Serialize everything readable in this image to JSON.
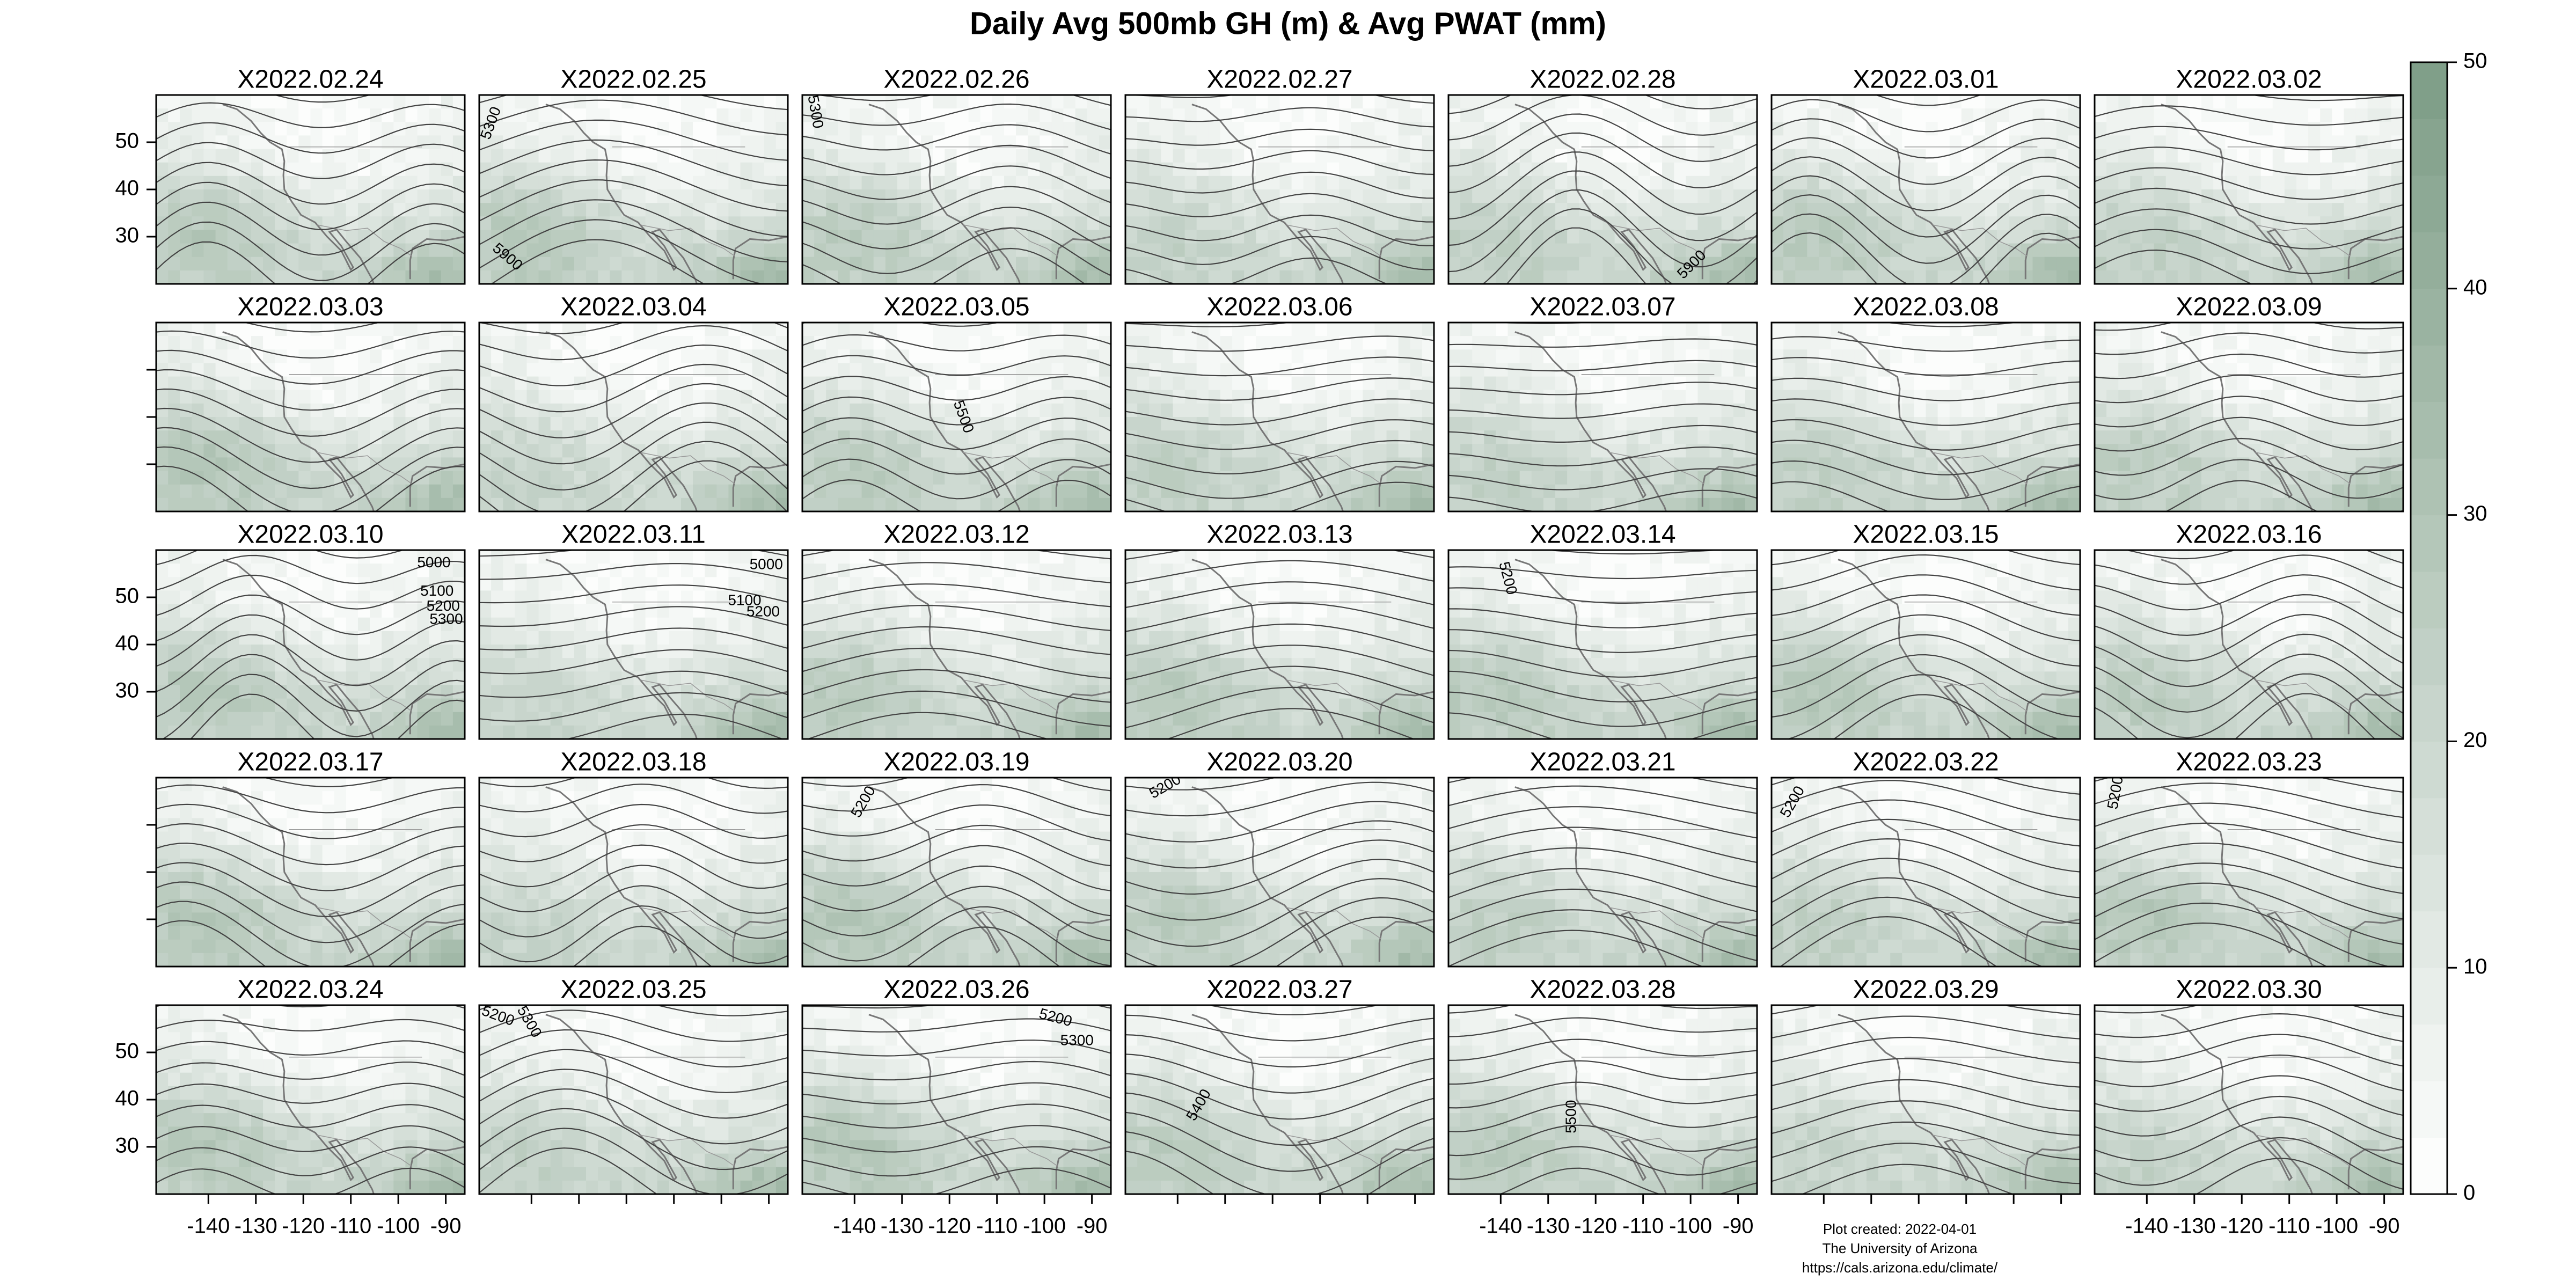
{
  "title": "Daily Avg 500mb GH (m) & Avg PWAT (mm)",
  "panels": [
    {
      "title": "X2022.02.24",
      "contour_labels": []
    },
    {
      "title": "X2022.02.25",
      "contour_labels": [
        5300,
        5900
      ]
    },
    {
      "title": "X2022.02.26",
      "contour_labels": [
        5300
      ]
    },
    {
      "title": "X2022.02.27",
      "contour_labels": []
    },
    {
      "title": "X2022.02.28",
      "contour_labels": [
        5900
      ]
    },
    {
      "title": "X2022.03.01",
      "contour_labels": []
    },
    {
      "title": "X2022.03.02",
      "contour_labels": []
    },
    {
      "title": "X2022.03.03",
      "contour_labels": []
    },
    {
      "title": "X2022.03.04",
      "contour_labels": []
    },
    {
      "title": "X2022.03.05",
      "contour_labels": [
        5500
      ]
    },
    {
      "title": "X2022.03.06",
      "contour_labels": []
    },
    {
      "title": "X2022.03.07",
      "contour_labels": []
    },
    {
      "title": "X2022.03.08",
      "contour_labels": []
    },
    {
      "title": "X2022.03.09",
      "contour_labels": []
    },
    {
      "title": "X2022.03.10",
      "contour_labels": [
        5000,
        5100,
        5200,
        5300
      ]
    },
    {
      "title": "X2022.03.11",
      "contour_labels": [
        5000,
        5100,
        5200
      ]
    },
    {
      "title": "X2022.03.12",
      "contour_labels": []
    },
    {
      "title": "X2022.03.13",
      "contour_labels": []
    },
    {
      "title": "X2022.03.14",
      "contour_labels": [
        5200
      ]
    },
    {
      "title": "X2022.03.15",
      "contour_labels": []
    },
    {
      "title": "X2022.03.16",
      "contour_labels": []
    },
    {
      "title": "X2022.03.17",
      "contour_labels": []
    },
    {
      "title": "X2022.03.18",
      "contour_labels": []
    },
    {
      "title": "X2022.03.19",
      "contour_labels": [
        5200
      ]
    },
    {
      "title": "X2022.03.20",
      "contour_labels": [
        5200
      ]
    },
    {
      "title": "X2022.03.21",
      "contour_labels": []
    },
    {
      "title": "X2022.03.22",
      "contour_labels": [
        5200
      ]
    },
    {
      "title": "X2022.03.23",
      "contour_labels": [
        5200
      ]
    },
    {
      "title": "X2022.03.24",
      "contour_labels": []
    },
    {
      "title": "X2022.03.25",
      "contour_labels": [
        5200,
        5300
      ]
    },
    {
      "title": "X2022.03.26",
      "contour_labels": [
        5200,
        5300
      ]
    },
    {
      "title": "X2022.03.27",
      "contour_labels": [
        5400
      ]
    },
    {
      "title": "X2022.03.28",
      "contour_labels": [
        5500
      ]
    },
    {
      "title": "X2022.03.29",
      "contour_labels": []
    },
    {
      "title": "X2022.03.30",
      "contour_labels": []
    }
  ],
  "lat_axis": {
    "ylim": [
      20,
      60
    ],
    "yticks": [
      30,
      40,
      50
    ]
  },
  "lon_axis": {
    "xlim": [
      -151,
      -86
    ],
    "xticks": [
      -140,
      -130,
      -120,
      -110,
      -100,
      -90
    ]
  },
  "colorbar": {
    "lim": [
      0,
      50
    ],
    "ticks": [
      0,
      10,
      20,
      30,
      40,
      50
    ],
    "low_color": "#ffffff",
    "high_color": "#7d9d86"
  },
  "footer": [
    "Plot created: 2022-04-01",
    "The University of Arizona",
    "https://cals.arizona.edu/climate/"
  ]
}
